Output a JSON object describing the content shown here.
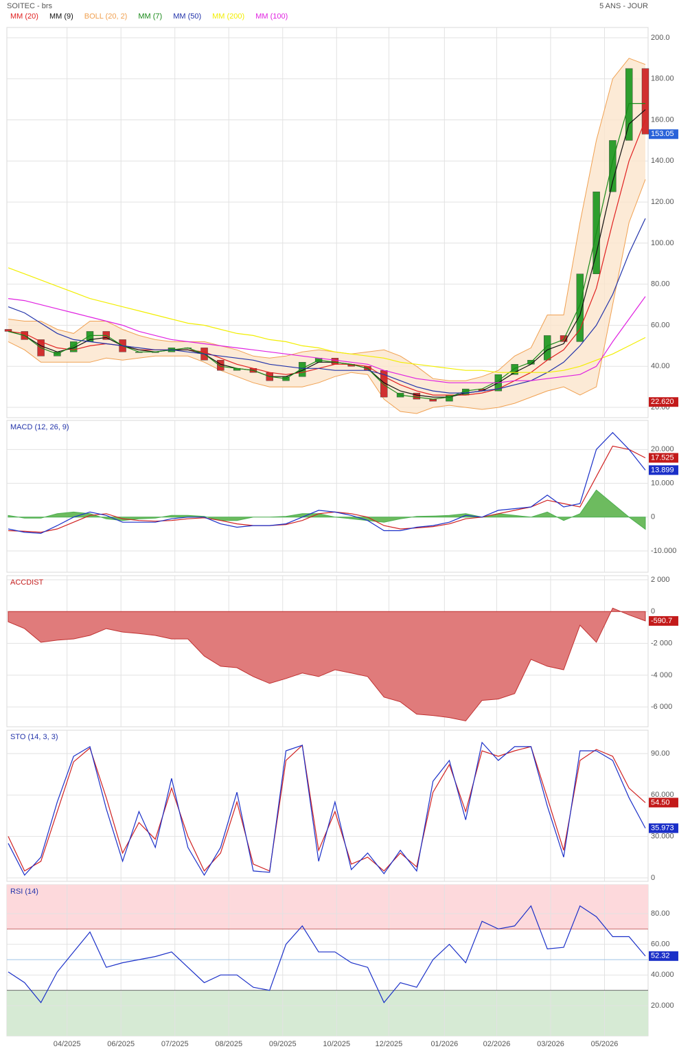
{
  "header": {
    "title": "SOITEC - brs",
    "period": "5 ANS - JOUR"
  },
  "chart_data": [
    {
      "type": "candlestick",
      "up_color": "#2e9e2e",
      "down_color": "#d03030",
      "x": [
        0,
        1,
        2,
        3,
        4,
        5,
        6,
        7,
        8,
        9,
        10,
        11,
        12,
        13,
        14,
        15,
        16,
        17,
        18,
        19,
        20,
        21,
        22,
        23,
        24,
        25,
        26,
        27,
        28,
        29,
        30,
        31,
        32,
        33,
        34,
        35,
        36,
        37,
        38,
        39
      ],
      "xlim": [
        0,
        39
      ],
      "xticks": [
        {
          "value": 3.6,
          "label": "04/2025"
        },
        {
          "value": 6.9,
          "label": "06/2025"
        },
        {
          "value": 10.2,
          "label": "07/2025"
        },
        {
          "value": 13.5,
          "label": "08/2025"
        },
        {
          "value": 16.8,
          "label": "09/2025"
        },
        {
          "value": 20.1,
          "label": "10/2025"
        },
        {
          "value": 23.3,
          "label": "12/2025"
        },
        {
          "value": 26.7,
          "label": "01/2026"
        },
        {
          "value": 29.9,
          "label": "02/2026"
        },
        {
          "value": 33.2,
          "label": "03/2026"
        },
        {
          "value": 36.5,
          "label": "05/2026"
        }
      ],
      "ylim": [
        15,
        205
      ],
      "yticks": [
        {
          "value": 20,
          "label": "20.00"
        },
        {
          "value": 40,
          "label": "40.00"
        },
        {
          "value": 60,
          "label": "60.00"
        },
        {
          "value": 80,
          "label": "80.00"
        },
        {
          "value": 100,
          "label": "100.00"
        },
        {
          "value": 120,
          "label": "120.00"
        },
        {
          "value": 140,
          "label": "140.00"
        },
        {
          "value": 160,
          "label": "160.00"
        },
        {
          "value": 180,
          "label": "180.00"
        },
        {
          "value": 200,
          "label": "200.0"
        }
      ],
      "open": [
        58,
        57,
        53,
        45,
        47,
        52,
        57,
        53,
        47,
        47,
        47,
        49,
        49,
        43,
        38,
        39,
        37,
        33,
        35,
        42,
        44,
        41,
        40,
        38,
        25,
        27,
        24,
        23,
        26,
        29,
        28,
        36,
        41,
        43,
        55,
        52,
        85,
        125,
        150,
        185
      ],
      "close": [
        57,
        53,
        45,
        47,
        52,
        57,
        53,
        47,
        47,
        47,
        49,
        49,
        43,
        38,
        39,
        37,
        33,
        35,
        42,
        44,
        41,
        40,
        38,
        25,
        27,
        24,
        23,
        26,
        29,
        28,
        36,
        41,
        43,
        55,
        52,
        85,
        125,
        150,
        185,
        153.05
      ],
      "series": [
        {
          "name": "MM (20)",
          "color": "#e02020",
          "kind": "line",
          "values": [
            57,
            56,
            52,
            49,
            48,
            50,
            51,
            50,
            48,
            48,
            48,
            48,
            47,
            44,
            41,
            39,
            37,
            36,
            37,
            39,
            41,
            41,
            40,
            35,
            31,
            28,
            26,
            26,
            26,
            27,
            29,
            33,
            37,
            43,
            48,
            58,
            78,
            110,
            140,
            160
          ]
        },
        {
          "name": "MM (9)",
          "color": "#111111",
          "kind": "line",
          "values": [
            57,
            55,
            50,
            47,
            49,
            53,
            54,
            50,
            48,
            47,
            48,
            48,
            46,
            41,
            39,
            38,
            35,
            35,
            38,
            42,
            42,
            41,
            39,
            32,
            28,
            26,
            25,
            25,
            27,
            28,
            32,
            37,
            41,
            48,
            51,
            65,
            95,
            130,
            158,
            165
          ]
        },
        {
          "name": "BOLL (20, 2)",
          "color": "#f0a050",
          "fill": "#fbe5cc",
          "kind": "band",
          "upper": [
            63,
            62,
            62,
            58,
            56,
            62,
            62,
            58,
            55,
            53,
            52,
            52,
            52,
            50,
            48,
            45,
            44,
            45,
            47,
            48,
            47,
            46,
            47,
            48,
            45,
            40,
            34,
            33,
            33,
            35,
            38,
            45,
            49,
            65,
            65,
            110,
            150,
            180,
            190,
            187
          ],
          "lower": [
            52,
            48,
            42,
            42,
            42,
            42,
            44,
            43,
            44,
            45,
            45,
            45,
            42,
            38,
            35,
            32,
            30,
            30,
            30,
            32,
            35,
            37,
            36,
            24,
            18,
            17,
            20,
            21,
            20,
            19,
            20,
            22,
            25,
            28,
            30,
            26,
            30,
            70,
            110,
            131
          ]
        },
        {
          "name": "MM (7)",
          "color": "#1a8a1a",
          "kind": "line",
          "values": [
            57,
            55,
            49,
            46,
            50,
            55,
            55,
            50,
            47,
            47,
            48,
            49,
            46,
            40,
            39,
            38,
            35,
            34,
            39,
            43,
            42,
            41,
            39,
            31,
            26,
            25,
            24,
            25,
            28,
            29,
            33,
            39,
            42,
            50,
            53,
            70,
            105,
            140,
            168,
            168
          ]
        },
        {
          "name": "MM (50)",
          "color": "#2233aa",
          "kind": "line",
          "values": [
            69,
            66,
            61,
            56,
            53,
            52,
            51,
            50,
            49,
            48,
            48,
            47,
            46,
            45,
            44,
            43,
            41,
            40,
            39,
            39,
            38,
            38,
            38,
            36,
            33,
            30,
            28,
            27,
            27,
            28,
            29,
            31,
            33,
            37,
            42,
            50,
            60,
            75,
            95,
            112
          ]
        },
        {
          "name": "MM (200)",
          "color": "#f2ee00",
          "kind": "line",
          "values": [
            88,
            85,
            82,
            79,
            76,
            73,
            71,
            69,
            67,
            65,
            63,
            61,
            60,
            58,
            56,
            55,
            53,
            52,
            50,
            49,
            47,
            46,
            45,
            44,
            42,
            41,
            40,
            39,
            38,
            38,
            37,
            37,
            37,
            37,
            38,
            40,
            43,
            46,
            50,
            54
          ]
        },
        {
          "name": "MM (100)",
          "color": "#e020e0",
          "kind": "line",
          "values": [
            73,
            72,
            70,
            68,
            66,
            64,
            62,
            60,
            57,
            55,
            53,
            52,
            51,
            50,
            49,
            48,
            47,
            46,
            45,
            44,
            43,
            42,
            41,
            38,
            36,
            34,
            33,
            32,
            32,
            32,
            32,
            33,
            33,
            34,
            35,
            36,
            40,
            52,
            63,
            74
          ]
        }
      ],
      "badges": [
        {
          "value": 153.05,
          "color": "#2962d9"
        },
        {
          "value": 22.62,
          "label": "22.620",
          "color": "#c31a1a"
        }
      ]
    },
    {
      "type": "macd",
      "title": "MACD (12, 26, 9)",
      "title_color": "#2233aa",
      "ylim": [
        -16.3,
        28.6
      ],
      "yticks": [
        {
          "value": -10,
          "label": "-10.000"
        },
        0,
        {
          "value": 10,
          "label": "10.000"
        },
        {
          "value": 20,
          "label": "20.000"
        }
      ],
      "series": [
        {
          "color": "#4caf50",
          "fill": "#6dbb5f",
          "kind": "area",
          "values": [
            0.5,
            -0.3,
            -0.3,
            1,
            1.5,
            1,
            -0.5,
            -1,
            -0.5,
            -0.3,
            0.5,
            0.5,
            0.2,
            -1,
            -1,
            0,
            0,
            0.2,
            1,
            1,
            0,
            -0.5,
            -1,
            -1.5,
            -0.5,
            0.2,
            0.3,
            0.5,
            1,
            0,
            1,
            0.5,
            0,
            1.5,
            -1,
            1,
            8,
            4,
            0,
            -3.6
          ]
        },
        {
          "color": "#d02020",
          "kind": "line",
          "values": [
            -4,
            -4.2,
            -4.5,
            -3.5,
            -1.5,
            0.5,
            1,
            -0.5,
            -1,
            -1.2,
            -1,
            -0.5,
            -0.2,
            -1,
            -2,
            -2.5,
            -2.5,
            -2.2,
            -1,
            1,
            1.5,
            1,
            0,
            -2.5,
            -3.5,
            -3.2,
            -2.8,
            -2,
            -0.5,
            0,
            1,
            2,
            3,
            5,
            4,
            3,
            12,
            21,
            20,
            17.525
          ]
        },
        {
          "color": "#1a2fc8",
          "kind": "line",
          "values": [
            -3.5,
            -4.5,
            -4.8,
            -2.5,
            0,
            1.5,
            0.5,
            -1.5,
            -1.5,
            -1.5,
            -0.5,
            0,
            0,
            -2,
            -3,
            -2.5,
            -2.5,
            -2,
            0,
            2,
            1.5,
            0.5,
            -1,
            -4,
            -4,
            -3,
            -2.5,
            -1.5,
            0.5,
            0,
            2,
            2.5,
            3,
            6.5,
            3,
            4,
            20,
            25,
            20,
            13.899
          ]
        }
      ],
      "badges": [
        {
          "value": 17.525,
          "color": "#c31a1a"
        },
        {
          "value": 13.899,
          "color": "#1a2fc8"
        }
      ]
    },
    {
      "type": "area",
      "title": "ACCDIST",
      "title_color": "#c31a1a",
      "ylim": [
        -7247,
        2258
      ],
      "yticks": [
        {
          "value": -6000,
          "label": "-6 000"
        },
        {
          "value": -4000,
          "label": "-4 000"
        },
        {
          "value": -2000,
          "label": "-2 000"
        },
        0,
        {
          "value": 2000,
          "label": "2 000"
        }
      ],
      "series": [
        {
          "color": "#c03030",
          "fill": "#e07b7b",
          "kind": "area",
          "values": [
            -645,
            -1075,
            -1935,
            -1800,
            -1720,
            -1500,
            -1075,
            -1290,
            -1380,
            -1500,
            -1720,
            -1720,
            -2800,
            -3440,
            -3530,
            -4090,
            -4520,
            -4215,
            -3870,
            -4090,
            -3660,
            -3870,
            -4090,
            -5380,
            -5680,
            -6450,
            -6540,
            -6670,
            -6880,
            -5590,
            -5500,
            -5160,
            -3010,
            -3440,
            -3660,
            -860,
            -1935,
            215,
            -215,
            -590.7
          ]
        }
      ],
      "badges": [
        {
          "value": -590.7,
          "color": "#c31a1a"
        }
      ]
    },
    {
      "type": "line",
      "title": "STO (14, 3, 3)",
      "title_color": "#2233aa",
      "ylim": [
        -2.5,
        106.9
      ],
      "yticks": [
        0,
        {
          "value": 30,
          "label": "30.000"
        },
        {
          "value": 60,
          "label": "60.000"
        },
        {
          "value": 90,
          "label": "90.00"
        }
      ],
      "series": [
        {
          "color": "#d02020",
          "kind": "line",
          "values": [
            30,
            5,
            12,
            48,
            84,
            94,
            58,
            18,
            40,
            28,
            65,
            30,
            5,
            18,
            55,
            10,
            5,
            85,
            96,
            20,
            48,
            10,
            15,
            5,
            18,
            8,
            62,
            82,
            48,
            92,
            88,
            92,
            95,
            58,
            20,
            85,
            93,
            88,
            65,
            54.5
          ]
        },
        {
          "color": "#1a2fc8",
          "kind": "line",
          "values": [
            25,
            2,
            15,
            55,
            88,
            95,
            50,
            12,
            48,
            22,
            72,
            22,
            2,
            22,
            62,
            5,
            4,
            92,
            96,
            12,
            55,
            6,
            18,
            3,
            20,
            5,
            70,
            85,
            42,
            98,
            85,
            95,
            95,
            52,
            15,
            92,
            92,
            85,
            58,
            35.973
          ]
        }
      ],
      "badges": [
        {
          "value": 54.5,
          "label": "54.50",
          "color": "#c31a1a"
        },
        {
          "value": 35.973,
          "color": "#1a2fc8"
        }
      ]
    },
    {
      "type": "line",
      "title": "RSI (14)",
      "title_color": "#2233aa",
      "ylim": [
        0.3,
        98.8
      ],
      "yticks": [
        {
          "value": 20,
          "label": "20.000"
        },
        {
          "value": 40,
          "label": "40.000"
        },
        {
          "value": 60,
          "label": "60.00"
        },
        {
          "value": 80,
          "label": "80.00"
        }
      ],
      "overbought": 70,
      "oversold": 30,
      "midline": 50,
      "series": [
        {
          "color": "#1a2fc8",
          "kind": "line",
          "values": [
            42,
            35,
            22,
            42,
            55,
            68,
            45,
            48,
            50,
            52,
            55,
            45,
            35,
            40,
            40,
            32,
            30,
            60,
            72,
            55,
            55,
            48,
            45,
            22,
            35,
            32,
            50,
            60,
            48,
            75,
            70,
            72,
            85,
            57,
            58,
            85,
            78,
            65,
            65,
            52.32
          ]
        }
      ],
      "badges": [
        {
          "value": 52.32,
          "color": "#1a2fc8"
        }
      ]
    }
  ]
}
